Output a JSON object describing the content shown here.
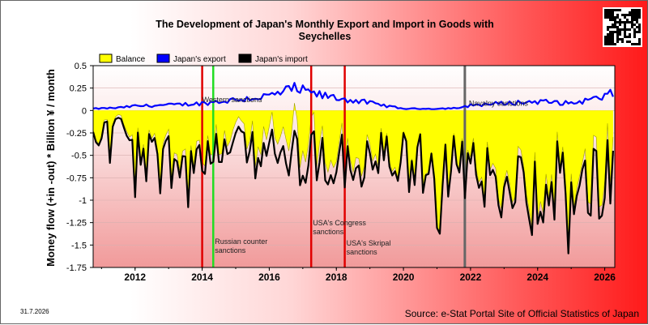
{
  "chart_data": {
    "type": "line",
    "title_line1": "The Development of Japan's Monthly Export and Import in Goods with",
    "title_line2": "Seychelles",
    "ylabel": "Money flow (+in -out) * Billion ¥ / month",
    "ylim": [
      -1.75,
      0.5
    ],
    "yticks": [
      "0.5",
      "0.25",
      "0",
      "-0.25",
      "-0.5",
      "-0.75",
      "-1",
      "-1.25",
      "-1.5",
      "-1.75"
    ],
    "xlim": [
      2010.75,
      2026.3
    ],
    "xticks": [
      "2012",
      "2014",
      "2016",
      "2018",
      "2020",
      "2022",
      "2024",
      "2026"
    ],
    "legend": [
      "Balance",
      "Japan's export",
      "Japan's import"
    ],
    "series_colors": {
      "balance": "#ffff00",
      "export": "#0000ff",
      "import": "#000000"
    },
    "export_profile": [
      [
        2010.75,
        0.02
      ],
      [
        2011.5,
        0.03
      ],
      [
        2012.0,
        0.05
      ],
      [
        2013.0,
        0.06
      ],
      [
        2014.0,
        0.08
      ],
      [
        2015.0,
        0.12
      ],
      [
        2016.0,
        0.16
      ],
      [
        2016.75,
        0.24
      ],
      [
        2017.5,
        0.17
      ],
      [
        2018.0,
        0.14
      ],
      [
        2018.75,
        0.1
      ],
      [
        2019.5,
        0.05
      ],
      [
        2020.0,
        0.02
      ],
      [
        2021.0,
        0.02
      ],
      [
        2021.75,
        0.03
      ],
      [
        2022.0,
        0.06
      ],
      [
        2023.0,
        0.08
      ],
      [
        2024.0,
        0.1
      ],
      [
        2025.0,
        0.08
      ],
      [
        2026.0,
        0.15
      ],
      [
        2026.3,
        0.2
      ]
    ],
    "import_profile": [
      [
        2010.75,
        -0.35
      ],
      [
        2011.5,
        -0.1
      ],
      [
        2012.0,
        -0.55
      ],
      [
        2013.0,
        -0.5
      ],
      [
        2014.0,
        -0.55
      ],
      [
        2015.0,
        -0.5
      ],
      [
        2016.0,
        -0.55
      ],
      [
        2017.0,
        -0.6
      ],
      [
        2018.0,
        -0.65
      ],
      [
        2019.0,
        -0.6
      ],
      [
        2020.0,
        -0.65
      ],
      [
        2021.0,
        -0.75
      ],
      [
        2022.0,
        -0.8
      ],
      [
        2023.0,
        -0.85
      ],
      [
        2024.0,
        -0.9
      ],
      [
        2025.0,
        -0.95
      ],
      [
        2026.0,
        -0.9
      ],
      [
        2026.3,
        -0.85
      ]
    ],
    "events": [
      {
        "x": 2014.0,
        "color": "#e00000",
        "label1": "",
        "label2": ""
      },
      {
        "x": 2014.33,
        "color": "#22dd22",
        "label1": "Russian counter",
        "label2": "sanctions"
      },
      {
        "x": 2017.25,
        "color": "#e00000",
        "label1": "USA's Congress",
        "label2": "sanctions"
      },
      {
        "x": 2018.25,
        "color": "#e00000",
        "label1": "USA's Skripal",
        "label2": "sanctions"
      },
      {
        "x": 2021.83,
        "color": "#666666",
        "label1": "",
        "label2": ""
      }
    ],
    "annotations": [
      {
        "x": 2014.0,
        "y": 0.13,
        "text": "Western sanctions"
      },
      {
        "x": 2021.95,
        "y": 0.09,
        "text": "Navalny sanctions"
      }
    ]
  },
  "footer": {
    "date": "31.7.2026",
    "source": "Source: e-Stat Portal Site of Official Statistics of Japan"
  }
}
